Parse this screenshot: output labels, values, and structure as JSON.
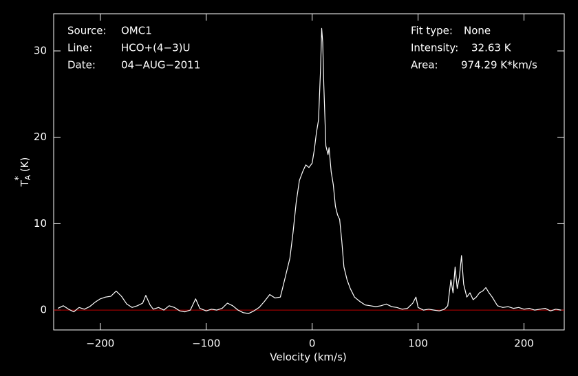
{
  "chart_data": {
    "type": "line",
    "xlabel": "Velocity (km/s)",
    "ylabel": {
      "main": "T",
      "sub": "A",
      "sup": "*",
      "unit": "(K)"
    },
    "annotations_left": [
      [
        "Source:",
        "OMC1"
      ],
      [
        "Line:",
        "HCO+(4−3)U"
      ],
      [
        "Date:",
        "04−AUG−2011"
      ]
    ],
    "annotations_right": [
      [
        "Fit type:",
        "None"
      ],
      [
        "Intensity:",
        "32.63 K"
      ],
      [
        "Area:",
        "974.29 K*km/s"
      ]
    ],
    "xlim": [
      -244,
      238
    ],
    "ylim": [
      -2.3,
      34.3
    ],
    "xticks": [
      {
        "value": -200,
        "label": "−200"
      },
      {
        "value": -100,
        "label": "−100"
      },
      0,
      100,
      200
    ],
    "yticks": [
      0,
      10,
      20,
      30
    ],
    "baseline": {
      "value": 0,
      "color": "#c00000"
    },
    "x": [
      -240,
      -235,
      -230,
      -225,
      -220,
      -215,
      -210,
      -205,
      -200,
      -195,
      -190,
      -185,
      -180,
      -175,
      -170,
      -165,
      -160,
      -157,
      -153,
      -150,
      -145,
      -140,
      -135,
      -130,
      -125,
      -120,
      -115,
      -110,
      -106,
      -100,
      -95,
      -90,
      -85,
      -80,
      -75,
      -70,
      -65,
      -60,
      -55,
      -50,
      -45,
      -40,
      -35,
      -30,
      -27,
      -24,
      -21,
      -18,
      -15,
      -12,
      -9,
      -6,
      -3,
      0,
      2,
      4,
      6,
      8,
      9,
      10,
      11,
      13,
      15,
      16,
      18,
      20,
      22,
      24,
      26,
      28,
      30,
      33,
      36,
      40,
      45,
      50,
      55,
      60,
      65,
      70,
      75,
      80,
      85,
      90,
      95,
      98,
      100,
      105,
      110,
      115,
      120,
      125,
      128,
      131,
      133,
      135,
      137,
      139,
      141,
      143,
      146,
      149,
      152,
      155,
      158,
      161,
      164,
      167,
      170,
      175,
      180,
      185,
      190,
      195,
      200,
      205,
      210,
      215,
      220,
      225,
      230,
      235
    ],
    "series": [
      {
        "name": "spectrum",
        "color": "#ffffff",
        "values": [
          0.2,
          0.5,
          0.1,
          -0.2,
          0.3,
          0.1,
          0.4,
          0.9,
          1.3,
          1.5,
          1.6,
          2.2,
          1.6,
          0.7,
          0.3,
          0.5,
          0.8,
          1.7,
          0.6,
          0.1,
          0.3,
          0.0,
          0.5,
          0.3,
          -0.1,
          -0.2,
          0.0,
          1.3,
          0.2,
          -0.1,
          0.1,
          0.0,
          0.2,
          0.8,
          0.5,
          0.0,
          -0.3,
          -0.4,
          -0.1,
          0.3,
          1.0,
          1.8,
          1.4,
          1.5,
          3.0,
          4.5,
          6.0,
          9.0,
          12.5,
          15.0,
          16.0,
          16.8,
          16.5,
          17.0,
          18.5,
          20.5,
          22.0,
          28.0,
          32.6,
          31.0,
          26.0,
          19.0,
          18.0,
          18.8,
          16.0,
          14.5,
          12.0,
          11.0,
          10.5,
          8.0,
          5.0,
          3.5,
          2.5,
          1.5,
          1.0,
          0.6,
          0.5,
          0.4,
          0.5,
          0.7,
          0.4,
          0.3,
          0.1,
          0.2,
          0.8,
          1.5,
          0.3,
          0.0,
          0.1,
          0.0,
          -0.1,
          0.1,
          0.5,
          3.5,
          2.0,
          5.0,
          2.5,
          3.8,
          6.3,
          3.0,
          1.5,
          2.0,
          1.2,
          1.5,
          2.0,
          2.2,
          2.6,
          2.0,
          1.5,
          0.5,
          0.3,
          0.4,
          0.2,
          0.3,
          0.1,
          0.2,
          0.0,
          0.1,
          0.2,
          -0.1,
          0.1,
          0.0
        ]
      }
    ]
  }
}
